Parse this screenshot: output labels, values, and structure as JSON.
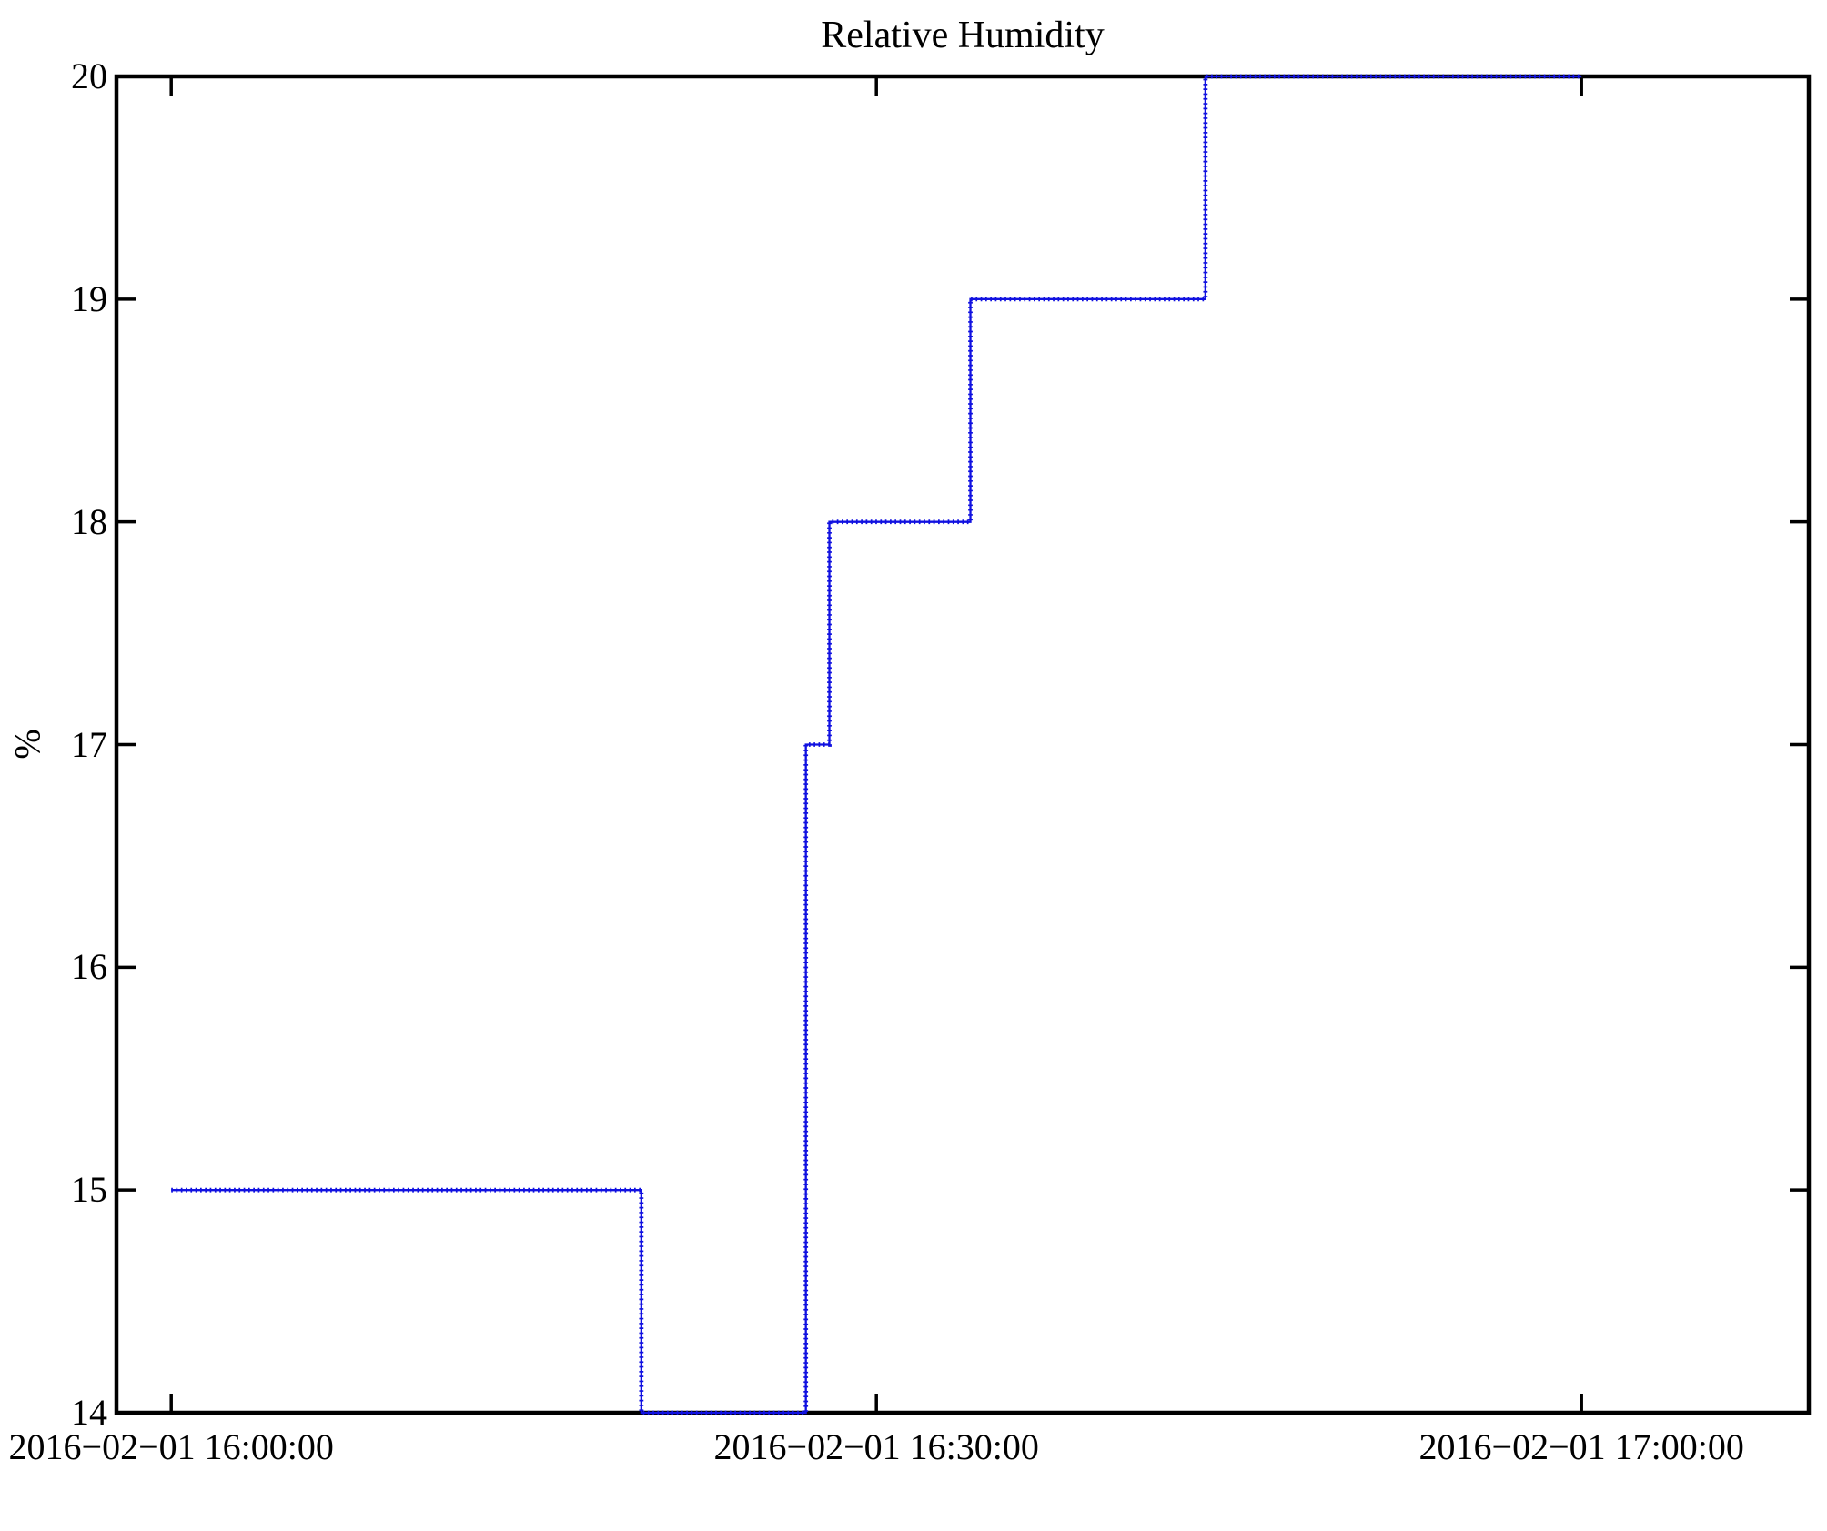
{
  "chart_data": {
    "type": "line",
    "subtype": "step",
    "title": "Relative Humidity",
    "xlabel": "",
    "ylabel": "%",
    "legend": "none",
    "grid": false,
    "background_color": "#ffffff",
    "axis_color": "#000000",
    "line_color": "#1111e0",
    "x_unit": "minutes after 2016-02-01 16:00:00",
    "xlim_minutes": [
      -2.33,
      69.67
    ],
    "ylim": [
      14,
      20
    ],
    "y_ticks": [
      {
        "value": 14,
        "label": "14"
      },
      {
        "value": 15,
        "label": "15"
      },
      {
        "value": 16,
        "label": "16"
      },
      {
        "value": 17,
        "label": "17"
      },
      {
        "value": 18,
        "label": "18"
      },
      {
        "value": 19,
        "label": "19"
      },
      {
        "value": 20,
        "label": "20"
      }
    ],
    "x_ticks": [
      {
        "minute": 0,
        "label": "2016−02−01 16:00:00"
      },
      {
        "minute": 30,
        "label": "2016−02−01 16:30:00"
      },
      {
        "minute": 60,
        "label": "2016−02−01 17:00:00"
      }
    ],
    "series": [
      {
        "name": "relative-humidity",
        "steps": [
          {
            "start_minute": 0,
            "end_minute": 20,
            "value": 15
          },
          {
            "start_minute": 20,
            "end_minute": 27,
            "value": 14
          },
          {
            "start_minute": 27,
            "end_minute": 28,
            "value": 17
          },
          {
            "start_minute": 28,
            "end_minute": 34,
            "value": 18
          },
          {
            "start_minute": 34,
            "end_minute": 44,
            "value": 19
          },
          {
            "start_minute": 44,
            "end_minute": 60,
            "value": 20
          }
        ]
      }
    ]
  }
}
